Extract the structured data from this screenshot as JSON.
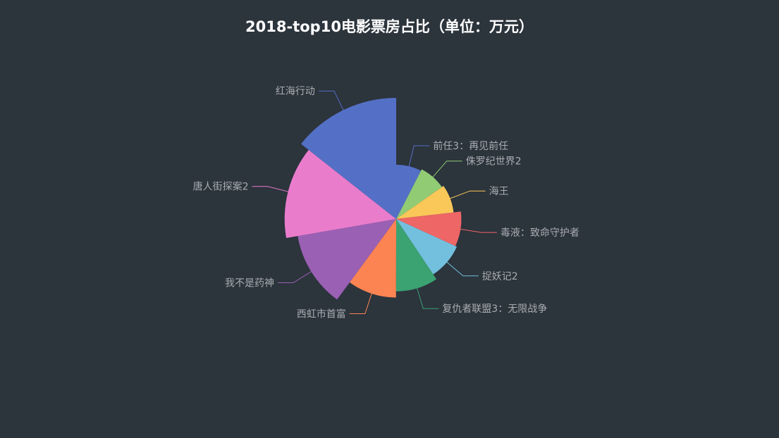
{
  "chart_data": {
    "type": "pie",
    "variant": "rose-radius",
    "title": "2018-top10电影票房占比（单位：万元）",
    "background": "#2c343c",
    "label_color": "#a9adb2",
    "slices": [
      {
        "name": "前任3：再见前任",
        "value": 192,
        "color": "#5470c6"
      },
      {
        "name": "侏罗纪世界2",
        "value": 196,
        "color": "#91cc75"
      },
      {
        "name": "海王",
        "value": 201,
        "color": "#fac858"
      },
      {
        "name": "毒液：致命守护者",
        "value": 220,
        "color": "#ee6666"
      },
      {
        "name": "捉妖记2",
        "value": 224,
        "color": "#73c0de"
      },
      {
        "name": "复仇者联盟3：无限战争",
        "value": 239,
        "color": "#3ba272"
      },
      {
        "name": "西虹市首富",
        "value": 255,
        "color": "#fc8452"
      },
      {
        "name": "我不是药神",
        "value": 310,
        "color": "#9a60b4"
      },
      {
        "name": "唐人街探案2",
        "value": 340,
        "color": "#ea7ccc"
      },
      {
        "name": "红海行动",
        "value": 365,
        "color": "#5470c6"
      }
    ]
  }
}
